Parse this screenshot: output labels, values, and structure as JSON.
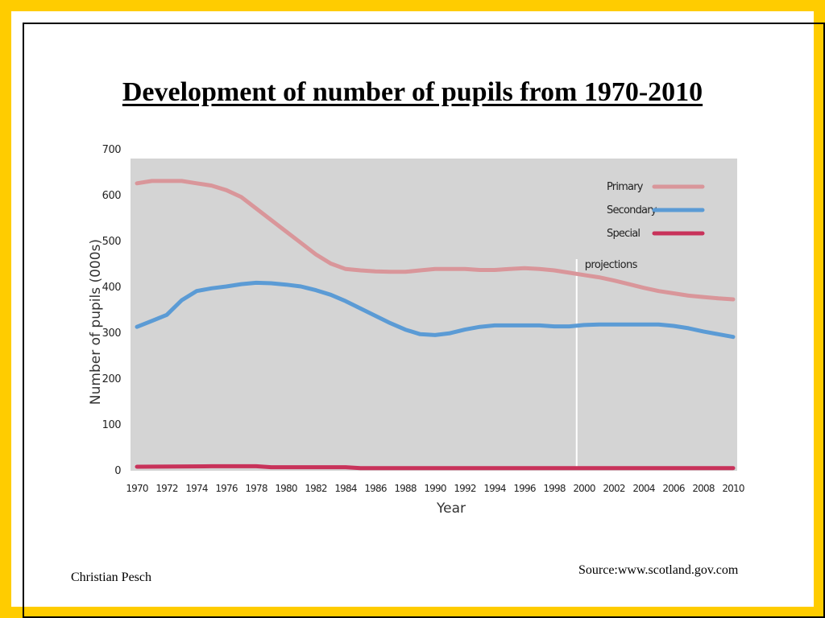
{
  "slide": {
    "title": "Development of number of pupils from 1970-2010",
    "author": "Christian Pesch",
    "source": "Source:www.scotland.gov.com",
    "border_color": "#ffcc00"
  },
  "chart_data": {
    "type": "line",
    "title": "",
    "xlabel": "Year",
    "ylabel": "Number of pupils (000s)",
    "xlim": [
      1970,
      2010
    ],
    "ylim": [
      0,
      700
    ],
    "x_ticks": [
      "1970",
      "1972",
      "1974",
      "1976",
      "1978",
      "1980",
      "1982",
      "1984",
      "1986",
      "1988",
      "1990",
      "1992",
      "1994",
      "1996",
      "1998",
      "2000",
      "2002",
      "2004",
      "2006",
      "2008",
      "2010"
    ],
    "y_ticks": [
      "0",
      "100",
      "200",
      "300",
      "400",
      "500",
      "600",
      "700"
    ],
    "grid": false,
    "legend_position": "top-right",
    "plot_background": "#d4d4d4",
    "annotation": {
      "label": "projections",
      "x": 1999.5
    },
    "series": [
      {
        "name": "Primary",
        "color": "#d9969a",
        "x": [
          1970,
          1971,
          1972,
          1973,
          1974,
          1975,
          1976,
          1977,
          1978,
          1979,
          1980,
          1981,
          1982,
          1983,
          1984,
          1985,
          1986,
          1987,
          1988,
          1989,
          1990,
          1991,
          1992,
          1993,
          1994,
          1995,
          1996,
          1997,
          1998,
          1999,
          2000,
          2001,
          2002,
          2003,
          2004,
          2005,
          2006,
          2007,
          2008,
          2009,
          2010
        ],
        "y": [
          625,
          630,
          630,
          630,
          625,
          620,
          610,
          595,
          570,
          545,
          520,
          495,
          470,
          450,
          438,
          435,
          433,
          432,
          432,
          435,
          438,
          438,
          438,
          436,
          436,
          438,
          440,
          438,
          435,
          430,
          425,
          420,
          413,
          405,
          397,
          390,
          385,
          380,
          377,
          374,
          372
        ]
      },
      {
        "name": "Secondary",
        "color": "#5b9bd5",
        "x": [
          1970,
          1971,
          1972,
          1973,
          1974,
          1975,
          1976,
          1977,
          1978,
          1979,
          1980,
          1981,
          1982,
          1983,
          1984,
          1985,
          1986,
          1987,
          1988,
          1989,
          1990,
          1991,
          1992,
          1993,
          1994,
          1995,
          1996,
          1997,
          1998,
          1999,
          2000,
          2001,
          2002,
          2003,
          2004,
          2005,
          2006,
          2007,
          2008,
          2009,
          2010
        ],
        "y": [
          312,
          325,
          338,
          370,
          390,
          396,
          400,
          405,
          408,
          407,
          404,
          400,
          392,
          382,
          368,
          352,
          336,
          320,
          306,
          296,
          294,
          298,
          306,
          312,
          315,
          315,
          315,
          315,
          313,
          313,
          316,
          317,
          317,
          317,
          317,
          317,
          314,
          309,
          302,
          296,
          290
        ]
      },
      {
        "name": "Special",
        "color": "#c8325a",
        "x": [
          1970,
          1975,
          1978,
          1979,
          1984,
          1985,
          1990,
          2000,
          2010
        ],
        "y": [
          7,
          8,
          8,
          6,
          6,
          4,
          4,
          4,
          4
        ]
      }
    ]
  }
}
